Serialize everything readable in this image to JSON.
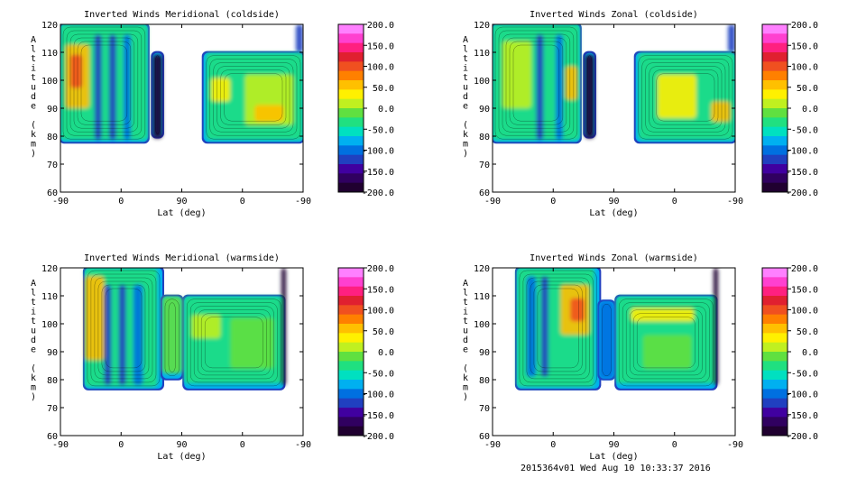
{
  "footer": "2015364v01 Wed Aug 10 10:33:37 2016",
  "colorbar": {
    "labels": [
      "200.0",
      "150.0",
      "100.0",
      "50.0",
      "0.0",
      "-50.0",
      "-100.0",
      "-150.0",
      "-200.0"
    ],
    "colors": [
      "#ff80ff",
      "#ff40d0",
      "#ff2080",
      "#e02030",
      "#f05020",
      "#ff8000",
      "#ffc000",
      "#fff000",
      "#c0f020",
      "#60e040",
      "#20e080",
      "#00e0c0",
      "#00b0f0",
      "#0070e0",
      "#2040c0",
      "#4000a0",
      "#300060",
      "#200030"
    ]
  },
  "chart_data": [
    {
      "type": "heatmap",
      "title": "Inverted Winds Meridional (coldside)",
      "xlabel": "Lat (deg)",
      "ylabel": "Altitude (km)",
      "x_ticks": [
        "-90",
        "0",
        "90",
        "0",
        "-90"
      ],
      "y_ticks": [
        "120",
        "110",
        "100",
        "90",
        "80",
        "70",
        "60"
      ],
      "ylim": [
        60,
        120
      ],
      "zlim": [
        -200,
        200
      ]
    },
    {
      "type": "heatmap",
      "title": "Inverted Winds Zonal (coldside)",
      "xlabel": "Lat (deg)",
      "ylabel": "Altitude (km)",
      "x_ticks": [
        "-90",
        "0",
        "90",
        "0",
        "-90"
      ],
      "y_ticks": [
        "120",
        "110",
        "100",
        "90",
        "80",
        "70",
        "60"
      ],
      "ylim": [
        60,
        120
      ],
      "zlim": [
        -200,
        200
      ]
    },
    {
      "type": "heatmap",
      "title": "Inverted Winds Meridional (warmside)",
      "xlabel": "Lat (deg)",
      "ylabel": "Altitude (km)",
      "x_ticks": [
        "-90",
        "0",
        "90",
        "0",
        "-90"
      ],
      "y_ticks": [
        "120",
        "110",
        "100",
        "90",
        "80",
        "70",
        "60"
      ],
      "ylim": [
        60,
        120
      ],
      "zlim": [
        -200,
        200
      ]
    },
    {
      "type": "heatmap",
      "title": "Inverted Winds Zonal (warmside)",
      "xlabel": "Lat (deg)",
      "ylabel": "Altitude (km)",
      "x_ticks": [
        "-90",
        "0",
        "90",
        "0",
        "-90"
      ],
      "y_ticks": [
        "120",
        "110",
        "100",
        "90",
        "80",
        "70",
        "60"
      ],
      "ylim": [
        60,
        120
      ],
      "zlim": [
        -200,
        200
      ]
    }
  ]
}
